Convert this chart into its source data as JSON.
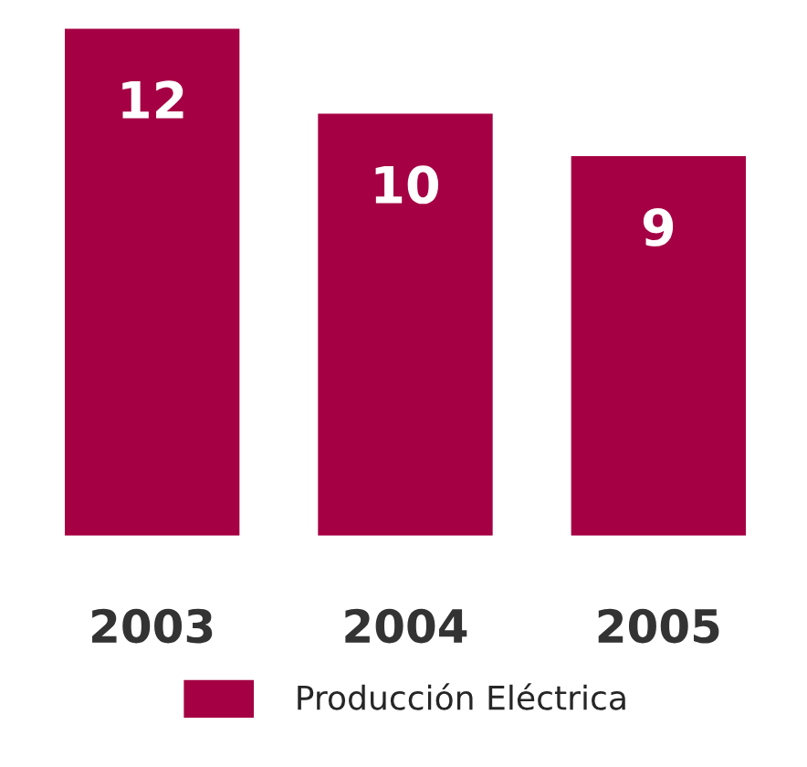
{
  "chart_data": {
    "type": "bar",
    "categories": [
      "2003",
      "2004",
      "2005"
    ],
    "series": [
      {
        "name": "Producción Eléctrica",
        "color": "#a50044",
        "values": [
          12,
          10,
          9
        ]
      }
    ],
    "data_labels": true,
    "legend": "bottom",
    "grid": false
  }
}
